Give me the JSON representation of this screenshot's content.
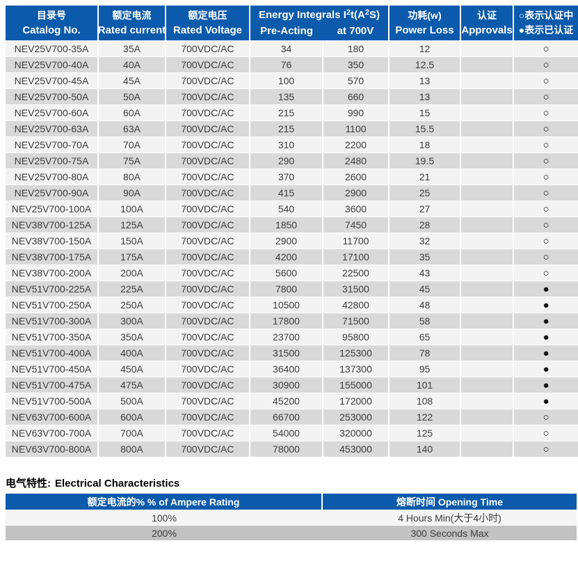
{
  "colors": {
    "header_blue": "#0c5aac",
    "row_light": "#f3f3f3",
    "row_gray": "#d9d9d9",
    "bottom_row_light": "#f4f4f4",
    "bottom_row_gray": "#c2c2c2",
    "text_dark": "#3c3c3c"
  },
  "main_table": {
    "header": {
      "catalog": {
        "zh": "目录号",
        "en": "Catalog No."
      },
      "current": {
        "zh": "额定电流",
        "en": "Rated current"
      },
      "voltage": {
        "zh": "额定电压",
        "en": "Rated Voltage"
      },
      "energy": {
        "title_pre": "Energy Integrals I",
        "sup1": "2",
        "title_mid": "t(A",
        "sup2": "2",
        "title_post": "S)",
        "sub_left": "Pre-Acting",
        "sub_right": "at 700V"
      },
      "power": {
        "zh": "功耗(w)",
        "en": "Power Loss"
      },
      "approvals": {
        "zh": "认证",
        "en": "Approvals"
      },
      "legend": {
        "line1": "○表示认证中",
        "line2": "●表示已认证"
      }
    },
    "rows": [
      {
        "catalog": "NEV25V700-35A",
        "current": "35A",
        "voltage": "700VDC/AC",
        "pre_acting": "34",
        "at_700v": "180",
        "power_loss": "12",
        "approvals": "",
        "status": "○"
      },
      {
        "catalog": "NEV25V700-40A",
        "current": "40A",
        "voltage": "700VDC/AC",
        "pre_acting": "76",
        "at_700v": "350",
        "power_loss": "12.5",
        "approvals": "",
        "status": "○"
      },
      {
        "catalog": "NEV25V700-45A",
        "current": "45A",
        "voltage": "700VDC/AC",
        "pre_acting": "100",
        "at_700v": "570",
        "power_loss": "13",
        "approvals": "",
        "status": "○"
      },
      {
        "catalog": "NEV25V700-50A",
        "current": "50A",
        "voltage": "700VDC/AC",
        "pre_acting": "135",
        "at_700v": "660",
        "power_loss": "13",
        "approvals": "",
        "status": "○"
      },
      {
        "catalog": "NEV25V700-60A",
        "current": "60A",
        "voltage": "700VDC/AC",
        "pre_acting": "215",
        "at_700v": "990",
        "power_loss": "15",
        "approvals": "",
        "status": "○"
      },
      {
        "catalog": "NEV25V700-63A",
        "current": "63A",
        "voltage": "700VDC/AC",
        "pre_acting": "215",
        "at_700v": "1100",
        "power_loss": "15.5",
        "approvals": "",
        "status": "○"
      },
      {
        "catalog": "NEV25V700-70A",
        "current": "70A",
        "voltage": "700VDC/AC",
        "pre_acting": "310",
        "at_700v": "2200",
        "power_loss": "18",
        "approvals": "",
        "status": "○"
      },
      {
        "catalog": "NEV25V700-75A",
        "current": "75A",
        "voltage": "700VDC/AC",
        "pre_acting": "290",
        "at_700v": "2480",
        "power_loss": "19.5",
        "approvals": "",
        "status": "○"
      },
      {
        "catalog": "NEV25V700-80A",
        "current": "80A",
        "voltage": "700VDC/AC",
        "pre_acting": "370",
        "at_700v": "2600",
        "power_loss": "21",
        "approvals": "",
        "status": "○"
      },
      {
        "catalog": "NEV25V700-90A",
        "current": "90A",
        "voltage": "700VDC/AC",
        "pre_acting": "415",
        "at_700v": "2900",
        "power_loss": "25",
        "approvals": "",
        "status": "○"
      },
      {
        "catalog": "NEV25V700-100A",
        "current": "100A",
        "voltage": "700VDC/AC",
        "pre_acting": "540",
        "at_700v": "3600",
        "power_loss": "27",
        "approvals": "",
        "status": "○"
      },
      {
        "catalog": "NEV38V700-125A",
        "current": "125A",
        "voltage": "700VDC/AC",
        "pre_acting": "1850",
        "at_700v": "7450",
        "power_loss": "28",
        "approvals": "",
        "status": "○"
      },
      {
        "catalog": "NEV38V700-150A",
        "current": "150A",
        "voltage": "700VDC/AC",
        "pre_acting": "2900",
        "at_700v": "11700",
        "power_loss": "32",
        "approvals": "",
        "status": "○"
      },
      {
        "catalog": "NEV38V700-175A",
        "current": "175A",
        "voltage": "700VDC/AC",
        "pre_acting": "4200",
        "at_700v": "17100",
        "power_loss": "35",
        "approvals": "",
        "status": "○"
      },
      {
        "catalog": "NEV38V700-200A",
        "current": "200A",
        "voltage": "700VDC/AC",
        "pre_acting": "5600",
        "at_700v": "22500",
        "power_loss": "43",
        "approvals": "",
        "status": "○"
      },
      {
        "catalog": "NEV51V700-225A",
        "current": "225A",
        "voltage": "700VDC/AC",
        "pre_acting": "7800",
        "at_700v": "31500",
        "power_loss": "45",
        "approvals": "",
        "status": "●"
      },
      {
        "catalog": "NEV51V700-250A",
        "current": "250A",
        "voltage": "700VDC/AC",
        "pre_acting": "10500",
        "at_700v": "42800",
        "power_loss": "48",
        "approvals": "",
        "status": "●"
      },
      {
        "catalog": "NEV51V700-300A",
        "current": "300A",
        "voltage": "700VDC/AC",
        "pre_acting": "17800",
        "at_700v": "71500",
        "power_loss": "58",
        "approvals": "",
        "status": "●"
      },
      {
        "catalog": "NEV51V700-350A",
        "current": "350A",
        "voltage": "700VDC/AC",
        "pre_acting": "23700",
        "at_700v": "95800",
        "power_loss": "65",
        "approvals": "",
        "status": "●"
      },
      {
        "catalog": "NEV51V700-400A",
        "current": "400A",
        "voltage": "700VDC/AC",
        "pre_acting": "31500",
        "at_700v": "125300",
        "power_loss": "78",
        "approvals": "",
        "status": "●"
      },
      {
        "catalog": "NEV51V700-450A",
        "current": "450A",
        "voltage": "700VDC/AC",
        "pre_acting": "36400",
        "at_700v": "137300",
        "power_loss": "95",
        "approvals": "",
        "status": "●"
      },
      {
        "catalog": "NEV51V700-475A",
        "current": "475A",
        "voltage": "700VDC/AC",
        "pre_acting": "30900",
        "at_700v": "155000",
        "power_loss": "101",
        "approvals": "",
        "status": "●"
      },
      {
        "catalog": "NEV51V700-500A",
        "current": "500A",
        "voltage": "700VDC/AC",
        "pre_acting": "45200",
        "at_700v": "172000",
        "power_loss": "108",
        "approvals": "",
        "status": "●"
      },
      {
        "catalog": "NEV63V700-600A",
        "current": "600A",
        "voltage": "700VDC/AC",
        "pre_acting": "66700",
        "at_700v": "253000",
        "power_loss": "122",
        "approvals": "",
        "status": "○"
      },
      {
        "catalog": "NEV63V700-700A",
        "current": "700A",
        "voltage": "700VDC/AC",
        "pre_acting": "54000",
        "at_700v": "320000",
        "power_loss": "125",
        "approvals": "",
        "status": "○"
      },
      {
        "catalog": "NEV63V700-800A",
        "current": "800A",
        "voltage": "700VDC/AC",
        "pre_acting": "78000",
        "at_700v": "453000",
        "power_loss": "140",
        "approvals": "",
        "status": "○"
      }
    ]
  },
  "section": {
    "title_zh": "电气特性:",
    "title_en": "Electrical Characteristics"
  },
  "bottom_table": {
    "header": {
      "left": "额定电流的%  % of Ampere Rating",
      "right": "熔断时间  Opening Time"
    },
    "rows": [
      {
        "percent": "100%",
        "time": "4 Hours Min(大于4小时)"
      },
      {
        "percent": "200%",
        "time": "300 Seconds Max"
      }
    ]
  }
}
